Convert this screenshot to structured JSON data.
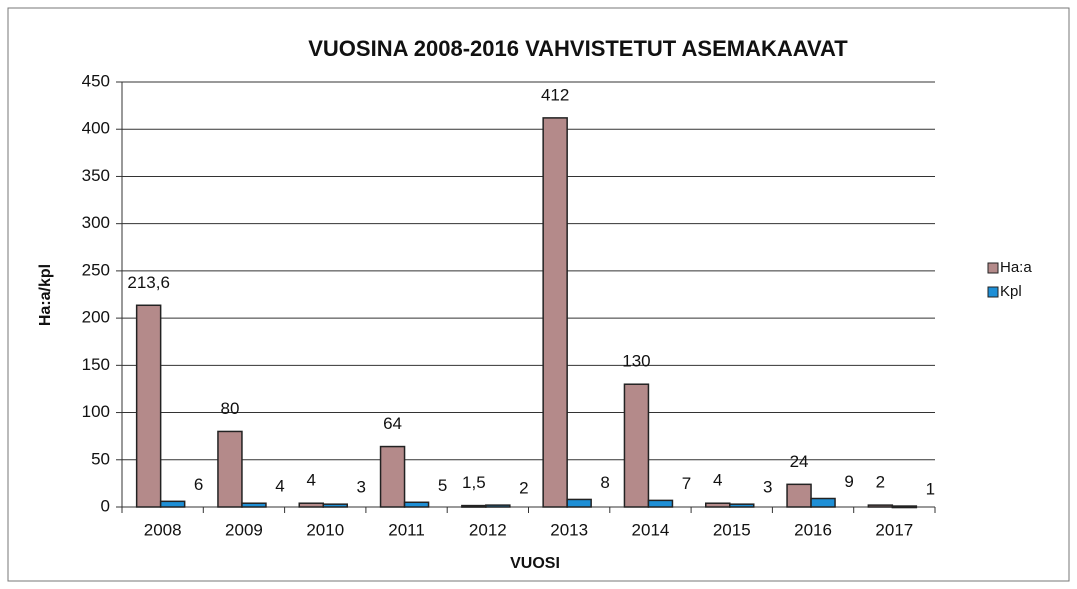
{
  "chart_data": {
    "type": "bar",
    "title": "VUOSINA 2008-2016 VAHVISTETUT ASEMAKAAVAT",
    "x_label": "VUOSI",
    "y_label": "Ha:a/kpl",
    "categories": [
      "2008",
      "2009",
      "2010",
      "2011",
      "2012",
      "2013",
      "2014",
      "2015",
      "2016",
      "2017"
    ],
    "series": [
      {
        "name": "Ha:a",
        "color": "#b48a8a",
        "values": [
          213.6,
          80,
          4,
          64,
          1.5,
          412,
          130,
          4,
          24,
          2
        ],
        "value_labels": [
          "213,6",
          "80",
          "4",
          "64",
          "1,5",
          "412",
          "130",
          "4",
          "24",
          "2"
        ]
      },
      {
        "name": "Kpl",
        "color": "#1e8fd6",
        "values": [
          6,
          4,
          3,
          5,
          2,
          8,
          7,
          3,
          9,
          1
        ]
      }
    ],
    "ylim": [
      0,
      450
    ],
    "yticks": [
      0,
      50,
      100,
      150,
      200,
      250,
      300,
      350,
      400,
      450
    ],
    "grid": true,
    "legend": "right"
  }
}
